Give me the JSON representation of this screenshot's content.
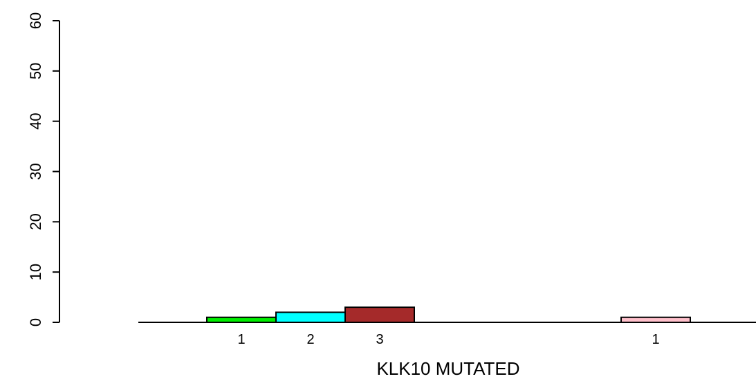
{
  "chart_data": {
    "type": "bar",
    "title": "",
    "xlabel": "KLK10 MUTATED",
    "ylabel": "",
    "ylim": [
      0,
      60
    ],
    "yticks": [
      0,
      10,
      20,
      30,
      40,
      50,
      60
    ],
    "grid": false,
    "bars": [
      {
        "label": "1",
        "value": 1,
        "color": "#00ee00"
      },
      {
        "label": "2",
        "value": 2,
        "color": "#00ffff"
      },
      {
        "label": "3",
        "value": 3,
        "color": "#a52a2a"
      },
      {
        "label": "1",
        "value": 1,
        "color": "#ffc0cb"
      }
    ]
  }
}
